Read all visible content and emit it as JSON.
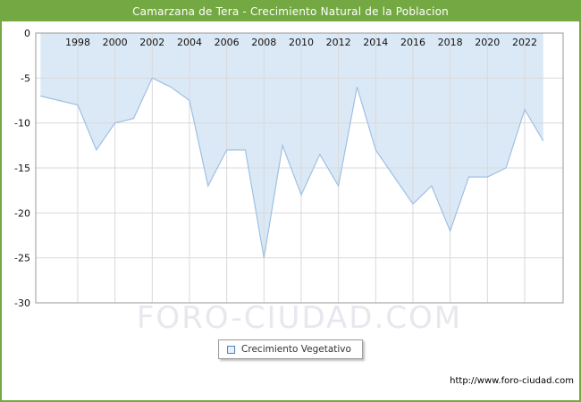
{
  "header": {
    "title": "Camarzana de Tera - Crecimiento Natural de la Poblacion"
  },
  "legend": {
    "label": "Crecimiento Vegetativo"
  },
  "watermark": "FORO-CIUDAD.COM",
  "footer": {
    "url": "http://www.foro-ciudad.com"
  },
  "colors": {
    "header_bg": "#74a843",
    "area_fill": "#dbe9f7",
    "line_stroke": "#9fc0e2",
    "grid": "#d9d9d9",
    "plot_border": "#999999",
    "tick_text": "#111111"
  },
  "chart_data": {
    "type": "area",
    "title": "Camarzana de Tera - Crecimiento Natural de la Poblacion",
    "series_name": "Crecimiento Vegetativo",
    "x": [
      1996,
      1997,
      1998,
      1999,
      2000,
      2001,
      2002,
      2003,
      2004,
      2005,
      2006,
      2007,
      2008,
      2009,
      2010,
      2011,
      2012,
      2013,
      2014,
      2015,
      2016,
      2017,
      2018,
      2019,
      2020,
      2021,
      2022,
      2023
    ],
    "values": [
      -7,
      -7.5,
      -8,
      -13,
      -10,
      -9.5,
      -5,
      -6,
      -7.5,
      -17,
      -13,
      -13,
      -25,
      -12.5,
      -18,
      -13.5,
      -17,
      -6,
      -13,
      -16,
      -19,
      -17,
      -22,
      -16,
      -16,
      -15,
      -8.5,
      -12
    ],
    "xticks": [
      1998,
      2000,
      2002,
      2004,
      2006,
      2008,
      2010,
      2012,
      2014,
      2016,
      2018,
      2020,
      2022
    ],
    "yticks": [
      0,
      -5,
      -10,
      -15,
      -20,
      -25,
      -30
    ],
    "ylim": [
      -30,
      0
    ],
    "xlabel": "",
    "ylabel": "",
    "grid": true,
    "legend_position": "bottom"
  }
}
